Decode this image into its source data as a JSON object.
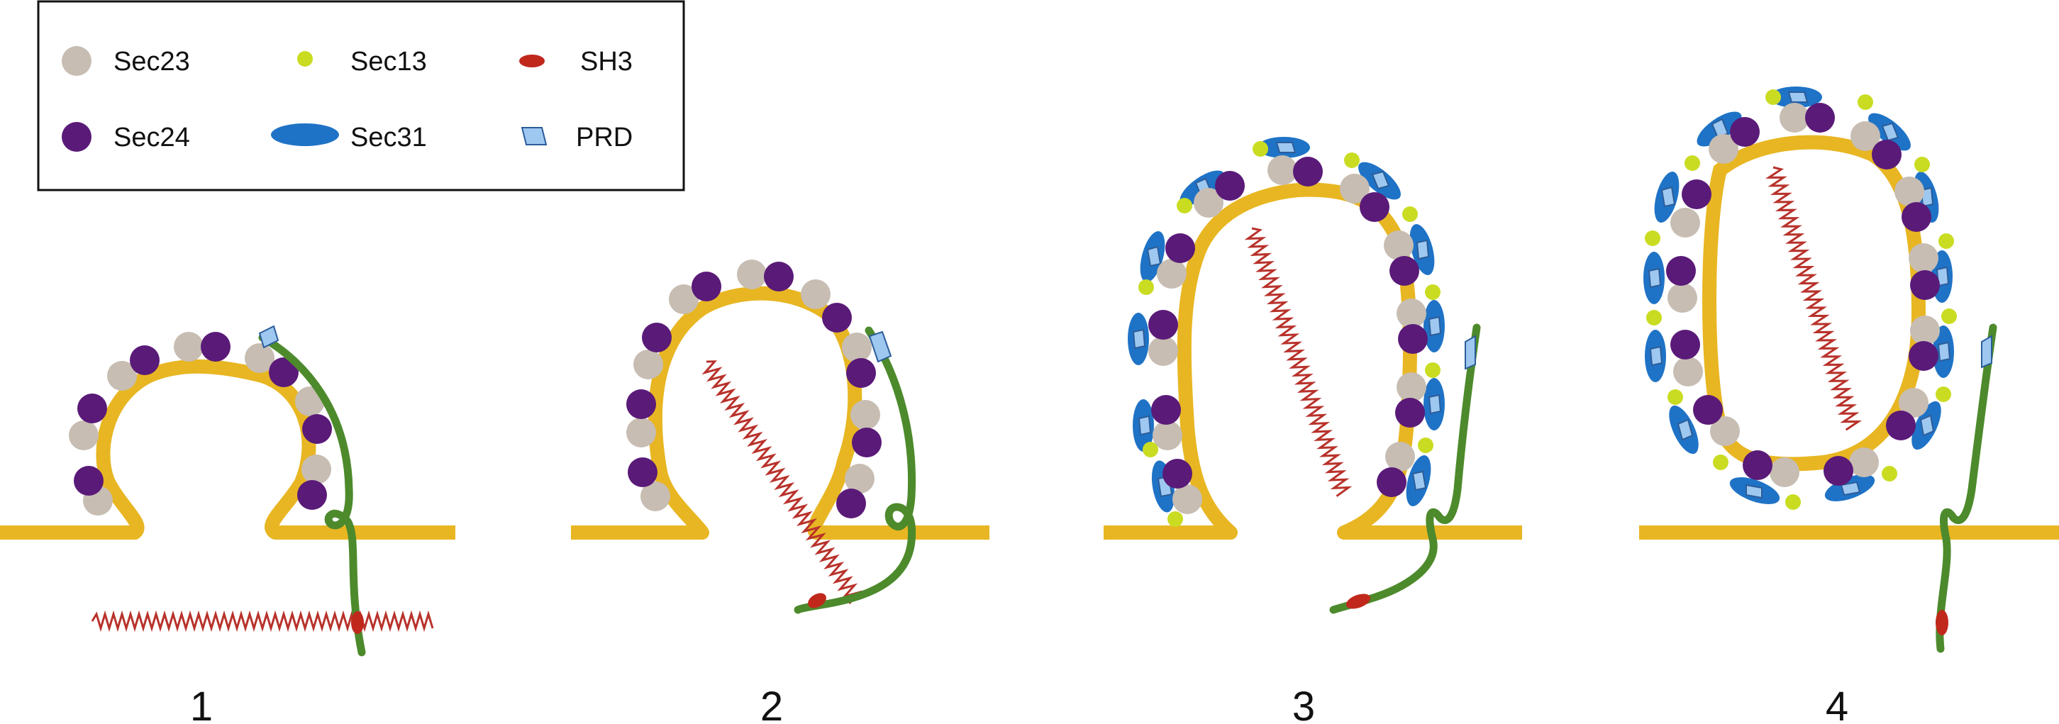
{
  "legend": {
    "items": [
      {
        "id": "sec23",
        "label": "Sec23",
        "shape": "circle",
        "color": "#c7bdb3"
      },
      {
        "id": "sec13",
        "label": "Sec13",
        "shape": "small-circle",
        "color": "#c9dc22"
      },
      {
        "id": "sh3",
        "label": "SH3",
        "shape": "small-ellipse",
        "color": "#c0281c"
      },
      {
        "id": "sec24",
        "label": "Sec24",
        "shape": "circle",
        "color": "#5a1a78"
      },
      {
        "id": "sec31",
        "label": "Sec31",
        "shape": "ellipse",
        "color": "#1f73c6"
      },
      {
        "id": "prd",
        "label": "PRD",
        "shape": "parallelogram",
        "color": "#9ec8f0"
      }
    ]
  },
  "panels": [
    {
      "number": "1"
    },
    {
      "number": "2"
    },
    {
      "number": "3"
    },
    {
      "number": "4"
    }
  ],
  "colors": {
    "membrane": "#e8b622",
    "tether": "#4d8a2c",
    "coiled_coil": "#b8322b",
    "sec23": "#c7bdb3",
    "sec24": "#5a1a78",
    "sec13": "#c9dc22",
    "sec31": "#1f73c6",
    "prd": "#9ec8f0",
    "sh3": "#c0281c"
  }
}
